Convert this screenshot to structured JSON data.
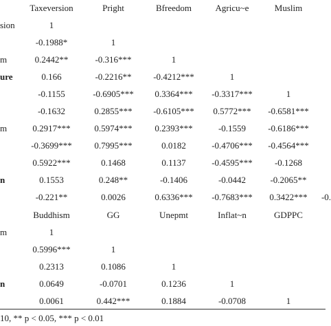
{
  "table": {
    "header": [
      "Taxeversion",
      "Pright",
      "Bfreedom",
      "Agricu~e",
      "Muslim"
    ],
    "rows": [
      {
        "label": "sion",
        "cells": [
          "1"
        ]
      },
      {
        "cells": [
          "-0.1988*",
          "1"
        ]
      },
      {
        "label": "m",
        "cells": [
          "0.2442**",
          "-0.316***",
          "1"
        ]
      },
      {
        "label": "ure",
        "bold": true,
        "cells": [
          "0.166",
          "-0.2216**",
          "-0.4212***",
          "1"
        ]
      },
      {
        "cells": [
          "-0.1155",
          "-0.6905***",
          "0.3364***",
          "-0.3317***",
          "1"
        ]
      },
      {
        "cells": [
          "-0.1632",
          "0.2855***",
          "-0.6105***",
          "0.5772***",
          "-0.6581***"
        ]
      },
      {
        "label": "m",
        "cells": [
          "0.2917***",
          "0.5974***",
          "0.2393***",
          "-0.1559",
          "-0.6186***"
        ]
      },
      {
        "cells": [
          "-0.3699***",
          "0.7995***",
          "0.0182",
          "-0.4706***",
          "-0.4564***"
        ]
      },
      {
        "cells": [
          "0.5922***",
          "0.1468",
          "0.1137",
          "-0.4595***",
          "-0.1268"
        ]
      },
      {
        "label": "n",
        "bold": true,
        "cells": [
          "0.1553",
          "0.248**",
          "-0.1406",
          "-0.0442",
          "-0.2065**"
        ]
      },
      {
        "cells": [
          "-0.221**",
          "0.0026",
          "0.6336***",
          "-0.7683***",
          "0.3422***",
          "-0."
        ]
      }
    ],
    "header2": [
      "Buddhism",
      "GG",
      "Unepmt",
      "Inflat~n",
      "GDPPC"
    ],
    "rows2": [
      {
        "label": "m",
        "cells": [
          "1"
        ]
      },
      {
        "cells": [
          "0.5996***",
          "1"
        ]
      },
      {
        "cells": [
          "0.2313",
          "0.1086",
          "1"
        ]
      },
      {
        "label": "n",
        "bold": true,
        "cells": [
          "0.0649",
          "-0.0701",
          "0.1236",
          "1"
        ]
      },
      {
        "cells": [
          "0.0061",
          "0.442***",
          "0.1884",
          "-0.0708",
          "1"
        ]
      }
    ],
    "footnote": "10, ** p < 0.05, *** p < 0.01"
  }
}
